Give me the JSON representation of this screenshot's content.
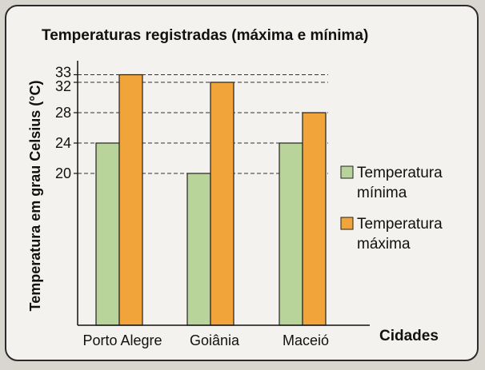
{
  "chart_data": {
    "type": "bar",
    "title": "Temperaturas registradas (máxima e mínima)",
    "ylabel": "Temperatura em grau Celsius (°C)",
    "xlabel": "Cidades",
    "categories": [
      "Porto Alegre",
      "Goiânia",
      "Maceió"
    ],
    "series": [
      {
        "name": "Temperatura mínima",
        "legend_lines": [
          "Temperatura",
          "mínima"
        ],
        "values": [
          24,
          20,
          24
        ],
        "color": "#b9d49a"
      },
      {
        "name": "Temperatura máxima",
        "legend_lines": [
          "Temperatura",
          "máxima"
        ],
        "values": [
          33,
          32,
          28
        ],
        "color": "#f0a43a"
      }
    ],
    "yticks": [
      20,
      24,
      28,
      32,
      33
    ],
    "ylim": [
      0,
      33
    ],
    "grid": "dashed reference lines at tick values",
    "legend": "right"
  }
}
